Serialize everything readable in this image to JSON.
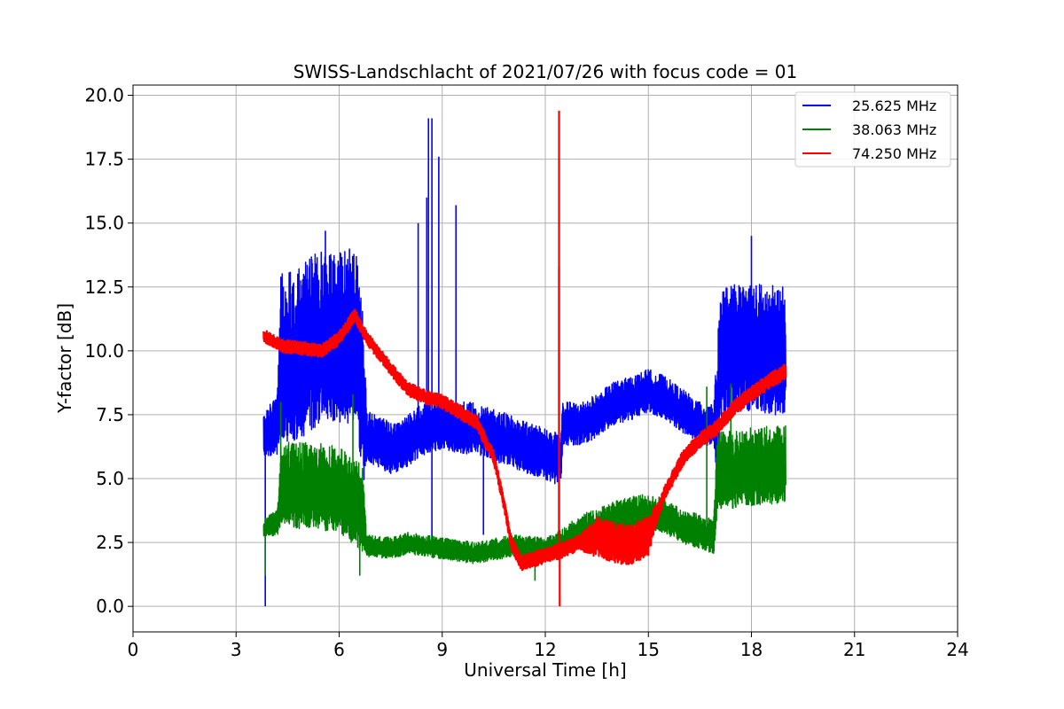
{
  "chart_data": {
    "type": "line",
    "title": "SWISS-Landschlacht of 2021/07/26 with focus code = 01",
    "xlabel": "Universal Time [h]",
    "ylabel": "Y-factor [dB]",
    "xlim": [
      0,
      24
    ],
    "ylim": [
      -1,
      20.4
    ],
    "xticks": [
      0,
      3,
      6,
      9,
      12,
      15,
      18,
      21,
      24
    ],
    "xtick_labels": [
      "0",
      "3",
      "6",
      "9",
      "12",
      "15",
      "18",
      "21",
      "24"
    ],
    "yticks": [
      0,
      2.5,
      5,
      7.5,
      10,
      12.5,
      15,
      17.5,
      20
    ],
    "ytick_labels": [
      "0.0",
      "2.5",
      "5.0",
      "7.5",
      "10.0",
      "12.5",
      "15.0",
      "17.5",
      "20.0"
    ],
    "grid": true,
    "legend_position": "top-right",
    "series": [
      {
        "name": "25.625 MHz",
        "color": "#0000ff",
        "base": [
          [
            3.8,
            6.5
          ],
          [
            4.2,
            7.0
          ],
          [
            4.3,
            9.0
          ],
          [
            5.0,
            9.5
          ],
          [
            5.5,
            10.0
          ],
          [
            6.0,
            10.0
          ],
          [
            6.5,
            9.8
          ],
          [
            6.8,
            6.5
          ],
          [
            7.5,
            6.0
          ],
          [
            8.0,
            6.3
          ],
          [
            8.5,
            6.8
          ],
          [
            9.0,
            7.0
          ],
          [
            9.5,
            6.8
          ],
          [
            10.0,
            6.8
          ],
          [
            10.5,
            6.5
          ],
          [
            11.0,
            6.3
          ],
          [
            11.5,
            6.0
          ],
          [
            12.0,
            5.8
          ],
          [
            12.45,
            5.5
          ],
          [
            12.5,
            7.0
          ],
          [
            13.0,
            7.0
          ],
          [
            13.5,
            7.3
          ],
          [
            14.0,
            7.8
          ],
          [
            14.5,
            8.0
          ],
          [
            15.0,
            8.3
          ],
          [
            15.5,
            8.0
          ],
          [
            16.0,
            7.5
          ],
          [
            16.5,
            7.0
          ],
          [
            17.0,
            7.0
          ],
          [
            17.1,
            9.5
          ],
          [
            18.0,
            9.7
          ],
          [
            19.0,
            9.5
          ]
        ],
        "spread": [
          [
            3.8,
            1.0
          ],
          [
            4.2,
            1.5
          ],
          [
            4.3,
            4.0
          ],
          [
            6.7,
            4.0
          ],
          [
            6.8,
            1.2
          ],
          [
            12.4,
            1.2
          ],
          [
            12.5,
            1.0
          ],
          [
            16.9,
            1.0
          ],
          [
            17.0,
            3.0
          ],
          [
            19.0,
            3.0
          ]
        ],
        "spikes": [
          [
            3.85,
            0.0
          ],
          [
            8.6,
            19.1
          ],
          [
            8.7,
            19.1
          ],
          [
            8.55,
            16.0
          ],
          [
            8.3,
            15.0
          ],
          [
            9.4,
            15.7
          ],
          [
            8.9,
            17.6
          ],
          [
            8.7,
            2.6
          ],
          [
            12.45,
            5.0
          ],
          [
            18.0,
            14.5
          ],
          [
            10.2,
            2.8
          ],
          [
            5.6,
            14.7
          ],
          [
            6.3,
            14.0
          ]
        ]
      },
      {
        "name": "38.063 MHz",
        "color": "#008000",
        "base": [
          [
            3.8,
            3.0
          ],
          [
            4.2,
            3.2
          ],
          [
            4.3,
            4.5
          ],
          [
            6.0,
            4.3
          ],
          [
            6.7,
            3.5
          ],
          [
            6.8,
            2.3
          ],
          [
            7.5,
            2.2
          ],
          [
            8.0,
            2.4
          ],
          [
            9.0,
            2.2
          ],
          [
            10.0,
            2.0
          ],
          [
            11.0,
            2.3
          ],
          [
            12.0,
            2.2
          ],
          [
            12.5,
            2.5
          ],
          [
            13.0,
            2.8
          ],
          [
            13.5,
            3.0
          ],
          [
            14.0,
            3.3
          ],
          [
            14.5,
            3.5
          ],
          [
            15.0,
            3.6
          ],
          [
            15.5,
            3.4
          ],
          [
            16.0,
            3.0
          ],
          [
            16.5,
            2.8
          ],
          [
            16.9,
            2.6
          ],
          [
            17.0,
            5.0
          ],
          [
            18.0,
            5.2
          ],
          [
            19.0,
            5.3
          ]
        ],
        "spread": [
          [
            3.8,
            0.4
          ],
          [
            4.2,
            0.6
          ],
          [
            4.3,
            2.0
          ],
          [
            6.7,
            2.0
          ],
          [
            6.8,
            0.5
          ],
          [
            12.4,
            0.5
          ],
          [
            13.0,
            0.8
          ],
          [
            16.9,
            0.8
          ],
          [
            17.0,
            1.8
          ],
          [
            19.0,
            1.8
          ]
        ],
        "spikes": [
          [
            3.85,
            1.2
          ],
          [
            4.3,
            8.0
          ],
          [
            6.4,
            8.3
          ],
          [
            17.4,
            8.7
          ],
          [
            16.7,
            8.6
          ],
          [
            6.6,
            1.2
          ],
          [
            11.7,
            1.0
          ]
        ]
      },
      {
        "name": "74.250 MHz",
        "color": "#ff0000",
        "base": [
          [
            3.8,
            10.6
          ],
          [
            4.3,
            10.2
          ],
          [
            5.5,
            10.0
          ],
          [
            6.0,
            10.5
          ],
          [
            6.45,
            11.4
          ],
          [
            6.8,
            10.5
          ],
          [
            7.5,
            9.3
          ],
          [
            8.0,
            8.5
          ],
          [
            8.5,
            8.2
          ],
          [
            9.0,
            8.0
          ],
          [
            9.5,
            7.6
          ],
          [
            10.0,
            7.2
          ],
          [
            10.5,
            5.8
          ],
          [
            10.8,
            4.0
          ],
          [
            11.0,
            2.5
          ],
          [
            11.3,
            1.7
          ],
          [
            11.8,
            1.9
          ],
          [
            12.5,
            2.2
          ],
          [
            13.0,
            2.5
          ],
          [
            13.5,
            2.7
          ],
          [
            14.0,
            2.5
          ],
          [
            14.5,
            2.4
          ],
          [
            15.0,
            2.8
          ],
          [
            15.5,
            4.5
          ],
          [
            16.0,
            5.8
          ],
          [
            16.5,
            6.5
          ],
          [
            17.0,
            7.0
          ],
          [
            17.5,
            7.8
          ],
          [
            18.0,
            8.3
          ],
          [
            18.5,
            8.8
          ],
          [
            19.0,
            9.2
          ]
        ],
        "spread": [
          [
            3.8,
            0.25
          ],
          [
            13.0,
            0.3
          ],
          [
            13.5,
            0.8
          ],
          [
            15.0,
            0.8
          ],
          [
            15.3,
            0.3
          ],
          [
            19.0,
            0.3
          ]
        ],
        "spikes": [
          [
            12.4,
            19.4
          ],
          [
            12.42,
            0.0
          ],
          [
            12.4,
            13.3
          ]
        ]
      }
    ]
  }
}
